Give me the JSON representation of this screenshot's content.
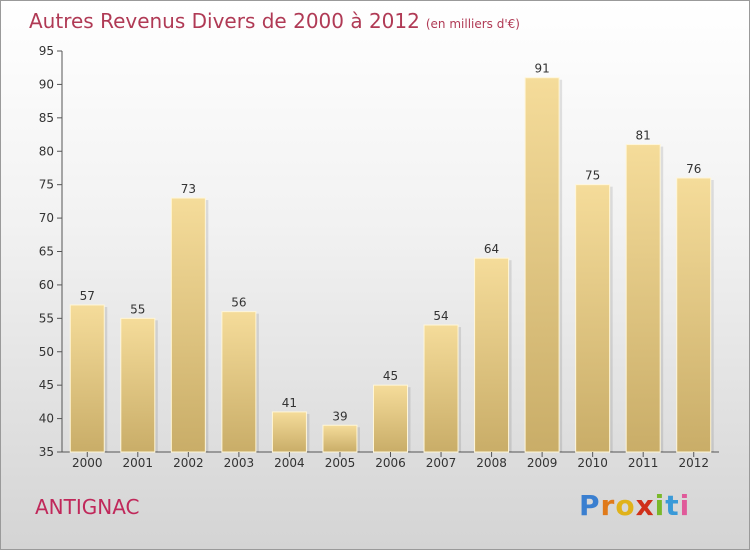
{
  "title": "Autres Revenus Divers de 2000 à 2012",
  "unit": "(en milliers d'€)",
  "city": "ANTIGNAC",
  "logo_text": "Proxiti",
  "colors": {
    "title": "#b03a55",
    "bar_top": "#f5dc9a",
    "bar_bottom": "#c9ad68",
    "city": "#c0285a"
  },
  "chart_data": {
    "type": "bar",
    "title": "Autres Revenus Divers de 2000 à 2012",
    "subtitle": "(en milliers d'€)",
    "xlabel": "",
    "ylabel": "",
    "categories": [
      "2000",
      "2001",
      "2002",
      "2003",
      "2004",
      "2005",
      "2006",
      "2007",
      "2008",
      "2009",
      "2010",
      "2011",
      "2012"
    ],
    "values": [
      57,
      55,
      73,
      56,
      41,
      39,
      45,
      54,
      64,
      91,
      75,
      81,
      76
    ],
    "ylim": [
      35,
      95
    ],
    "yticks": [
      35,
      40,
      45,
      50,
      55,
      60,
      65,
      70,
      75,
      80,
      85,
      90,
      95
    ],
    "grid": false,
    "data_labels": true
  }
}
